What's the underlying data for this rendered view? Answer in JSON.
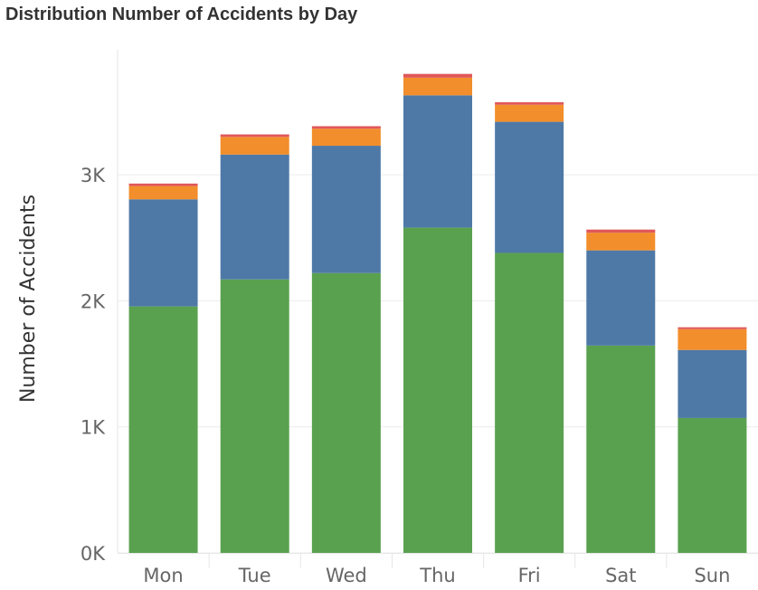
{
  "chart_data": {
    "type": "bar",
    "stacked": true,
    "title": "Distribution Number of Accidents by Day",
    "xlabel": "",
    "ylabel": "Number of Accidents",
    "categories": [
      "Mon",
      "Tue",
      "Wed",
      "Thu",
      "Fri",
      "Sat",
      "Sun"
    ],
    "series": [
      {
        "color": "#59a14f",
        "values": [
          1955,
          2170,
          2220,
          2580,
          2380,
          1645,
          1070
        ]
      },
      {
        "color": "#4e79a7",
        "values": [
          850,
          990,
          1010,
          1050,
          1040,
          755,
          540
        ]
      },
      {
        "color": "#f28e2b",
        "values": [
          105,
          140,
          135,
          140,
          135,
          140,
          165
        ]
      },
      {
        "color": "#e15759",
        "values": [
          20,
          20,
          20,
          30,
          20,
          25,
          15
        ]
      }
    ],
    "ylim": [
      0,
      3800
    ],
    "yticks": [
      0,
      1000,
      2000,
      3000
    ],
    "ytick_labels": [
      "0K",
      "1K",
      "2K",
      "3K"
    ],
    "grid": true,
    "legend": "none"
  }
}
